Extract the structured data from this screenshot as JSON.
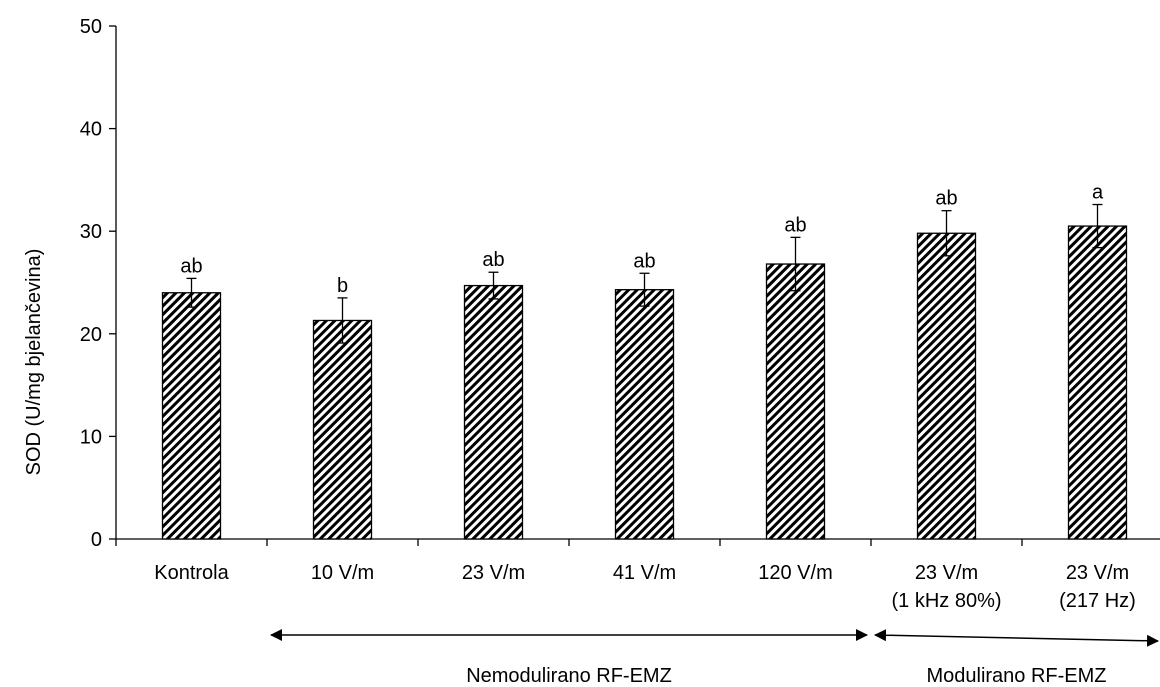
{
  "chart_data": {
    "type": "bar",
    "ylabel": "SOD (U/mg bjelančevina)",
    "ylim": [
      0,
      50
    ],
    "yticks": [
      0,
      10,
      20,
      30,
      40,
      50
    ],
    "grid": false,
    "bar_pattern": "diagonal-hatch",
    "colors": {
      "bar_fill": "#ffffff",
      "hatch": "#000000",
      "axis": "#000000"
    },
    "categories": [
      [
        "Kontrola"
      ],
      [
        "10 V/m"
      ],
      [
        "23 V/m"
      ],
      [
        "41 V/m"
      ],
      [
        "120 V/m"
      ],
      [
        "23 V/m",
        "(1 kHz 80%)"
      ],
      [
        "23 V/m",
        "(217 Hz)"
      ]
    ],
    "values": [
      24.0,
      21.3,
      24.7,
      24.3,
      26.8,
      29.8,
      30.5
    ],
    "errors": [
      1.4,
      2.2,
      1.3,
      1.6,
      2.6,
      2.2,
      2.1
    ],
    "significance": [
      "ab",
      "b",
      "ab",
      "ab",
      "ab",
      "ab",
      "a"
    ],
    "groups": [
      {
        "label": "Nemodulirano RF-EMZ",
        "from_category": 1,
        "to_category": 4
      },
      {
        "label": "Modulirano RF-EMZ",
        "from_category": 5,
        "to_category": 6
      }
    ]
  }
}
